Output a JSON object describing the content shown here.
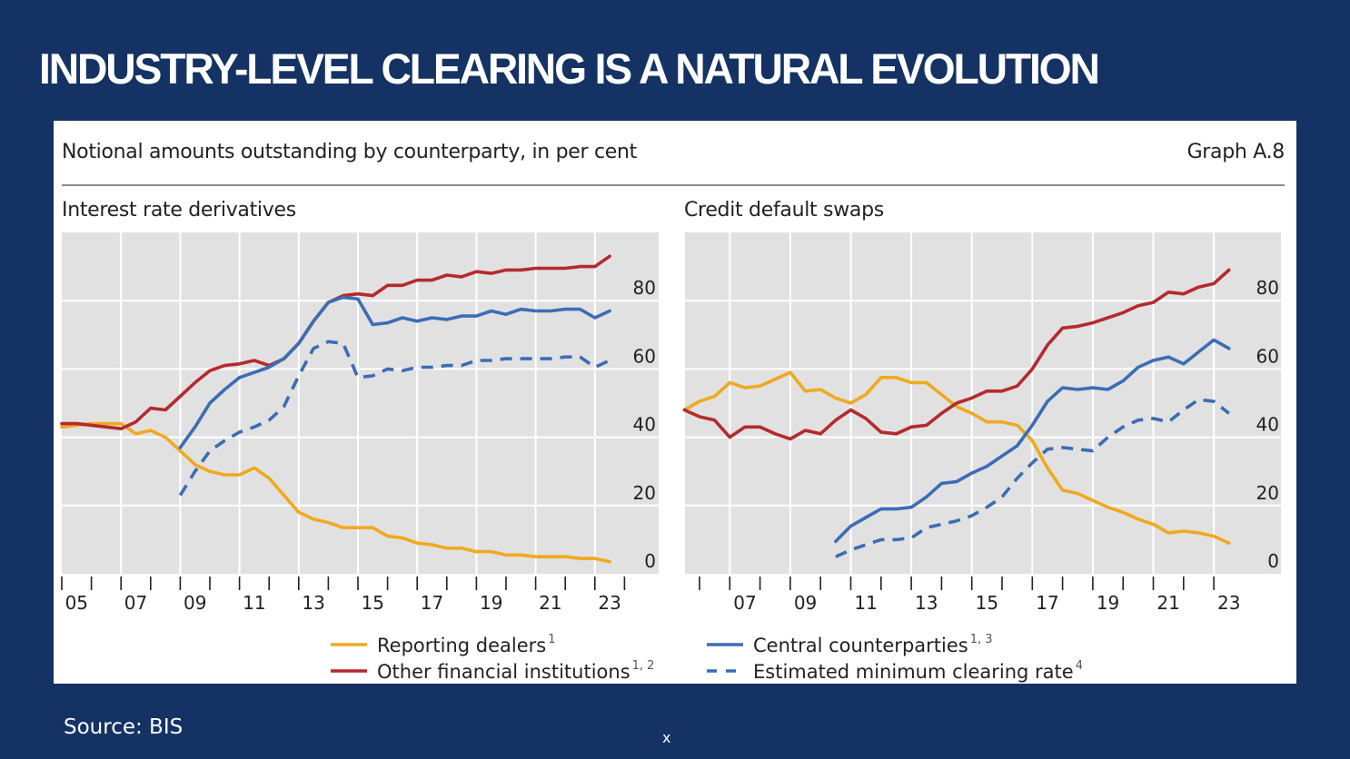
{
  "slide": {
    "title": "INDUSTRY-LEVEL CLEARING IS A NATURAL EVOLUTION",
    "source": "Source: BIS",
    "footer_mark": "x"
  },
  "panel": {
    "heading": "Notional amounts outstanding by counterparty, in per cent",
    "graph_id": "Graph A.8"
  },
  "colors": {
    "background": "#143263",
    "plot_bg": "#e1e1e1",
    "reporting_dealers": "#f0a91e",
    "other_financial_institutions": "#b52a2e",
    "central_counterparties": "#3b6db5",
    "estimated_minimum_clearing_rate": "#3b6db5"
  },
  "chart_data": [
    {
      "type": "line",
      "title": "Interest rate derivatives",
      "xlabel": "",
      "ylabel": "",
      "ylim": [
        0,
        100
      ],
      "yticks": [
        0,
        20,
        40,
        60,
        80
      ],
      "xlim": [
        2005,
        2025.1
      ],
      "xtick_labels": [
        "05",
        "07",
        "09",
        "11",
        "13",
        "15",
        "17",
        "19",
        "21",
        "23"
      ],
      "grid": true,
      "legend_position": "bottom",
      "series": [
        {
          "name": "Reporting dealers",
          "sup": "1",
          "style": "solid",
          "color_key": "reporting_dealers",
          "x": [
            2005,
            2005.5,
            2006,
            2006.5,
            2007,
            2007.5,
            2008,
            2008.5,
            2009,
            2009.5,
            2010,
            2010.5,
            2011,
            2011.5,
            2012,
            2012.5,
            2013,
            2013.5,
            2014,
            2014.5,
            2015,
            2015.5,
            2016,
            2016.5,
            2017,
            2017.5,
            2018,
            2018.5,
            2019,
            2019.5,
            2020,
            2020.5,
            2021,
            2021.5,
            2022,
            2022.5,
            2023,
            2023.5
          ],
          "y": [
            43,
            43.5,
            44,
            44,
            44,
            41,
            42,
            40,
            36,
            32,
            30,
            29,
            29,
            31,
            28,
            23,
            18,
            16,
            15,
            13.5,
            13.5,
            13.5,
            11,
            10.5,
            9,
            8.5,
            7.5,
            7.5,
            6.5,
            6.5,
            5.5,
            5.5,
            5,
            5,
            5,
            4.5,
            4.5,
            3.5
          ]
        },
        {
          "name": "Other financial institutions",
          "sup": "1, 2",
          "style": "solid",
          "color_key": "other_financial_institutions",
          "x": [
            2005,
            2005.5,
            2006,
            2006.5,
            2007,
            2007.5,
            2008,
            2008.5,
            2009,
            2009.5,
            2010,
            2010.5,
            2011,
            2011.5,
            2012,
            2012.5,
            2013,
            2013.5,
            2014,
            2014.5,
            2015,
            2015.5,
            2016,
            2016.5,
            2017,
            2017.5,
            2018,
            2018.5,
            2019,
            2019.5,
            2020,
            2020.5,
            2021,
            2021.5,
            2022,
            2022.5,
            2023,
            2023.5
          ],
          "y": [
            44,
            44,
            43.5,
            43,
            42.5,
            44.5,
            48.5,
            48,
            52,
            56,
            59.5,
            61,
            61.5,
            62.5,
            61,
            63,
            67.5,
            74,
            79.5,
            81.5,
            82,
            81.5,
            84.5,
            84.5,
            86,
            86,
            87.5,
            87,
            88.5,
            88,
            89,
            89,
            89.5,
            89.5,
            89.5,
            90,
            90,
            93
          ]
        },
        {
          "name": "Central counterparties",
          "sup": "1, 3",
          "style": "solid",
          "color_key": "central_counterparties",
          "x": [
            2009,
            2009.5,
            2010,
            2010.5,
            2011,
            2011.5,
            2012,
            2012.5,
            2013,
            2013.5,
            2014,
            2014.5,
            2015,
            2015.5,
            2016,
            2016.5,
            2017,
            2017.5,
            2018,
            2018.5,
            2019,
            2019.5,
            2020,
            2020.5,
            2021,
            2021.5,
            2022,
            2022.5,
            2023,
            2023.5
          ],
          "y": [
            37,
            43,
            50,
            54,
            57.5,
            59,
            60.5,
            63,
            67.5,
            74,
            79.5,
            81,
            80.5,
            73,
            73.5,
            75,
            74,
            75,
            74.5,
            75.5,
            75.5,
            77,
            76,
            77.5,
            77,
            77,
            77.5,
            77.5,
            75,
            77
          ]
        },
        {
          "name": "Estimated minimum clearing rate",
          "sup": "4",
          "style": "dashed",
          "color_key": "estimated_minimum_clearing_rate",
          "x": [
            2009,
            2009.5,
            2010,
            2010.5,
            2011,
            2011.5,
            2012,
            2012.5,
            2013,
            2013.5,
            2014,
            2014.5,
            2015,
            2015.5,
            2016,
            2016.5,
            2017,
            2017.5,
            2018,
            2018.5,
            2019,
            2019.5,
            2020,
            2020.5,
            2021,
            2021.5,
            2022,
            2022.5,
            2023,
            2023.5
          ],
          "y": [
            23,
            30,
            36,
            39,
            41.5,
            43,
            45,
            49,
            58,
            66,
            68,
            67.5,
            57.5,
            58,
            60,
            59.5,
            60.5,
            60.5,
            61,
            61,
            62.5,
            62.5,
            63,
            63,
            63,
            63,
            63.5,
            63.5,
            60.5,
            62.5
          ]
        }
      ]
    },
    {
      "type": "line",
      "title": "Credit default swaps",
      "xlabel": "",
      "ylabel": "",
      "ylim": [
        0,
        100
      ],
      "yticks": [
        0,
        20,
        40,
        60,
        80
      ],
      "xlim": [
        2005.5,
        2025.2
      ],
      "xtick_labels": [
        "07",
        "09",
        "11",
        "13",
        "15",
        "17",
        "19",
        "21",
        "23"
      ],
      "grid": true,
      "legend_position": "bottom",
      "series": [
        {
          "name": "Reporting dealers",
          "sup": "1",
          "style": "solid",
          "color_key": "reporting_dealers",
          "x": [
            2005.5,
            2006,
            2006.5,
            2007,
            2007.5,
            2008,
            2008.5,
            2009,
            2009.5,
            2010,
            2010.5,
            2011,
            2011.5,
            2012,
            2012.5,
            2013,
            2013.5,
            2014,
            2014.5,
            2015,
            2015.5,
            2016,
            2016.5,
            2017,
            2017.5,
            2018,
            2018.5,
            2019,
            2019.5,
            2020,
            2020.5,
            2021,
            2021.5,
            2022,
            2022.5,
            2023,
            2023.5
          ],
          "y": [
            48,
            50.5,
            52,
            56,
            54.5,
            55,
            57,
            59,
            53.5,
            54,
            51.5,
            50,
            52.5,
            57.5,
            57.5,
            56,
            56,
            52.5,
            49,
            47,
            44.5,
            44.5,
            43.5,
            39,
            31,
            24.5,
            23.5,
            21.5,
            19.5,
            18,
            16,
            14.5,
            12,
            12.5,
            12,
            11,
            9
          ]
        },
        {
          "name": "Other financial institutions",
          "sup": "1, 2",
          "style": "solid",
          "color_key": "other_financial_institutions",
          "x": [
            2005.5,
            2006,
            2006.5,
            2007,
            2007.5,
            2008,
            2008.5,
            2009,
            2009.5,
            2010,
            2010.5,
            2011,
            2011.5,
            2012,
            2012.5,
            2013,
            2013.5,
            2014,
            2014.5,
            2015,
            2015.5,
            2016,
            2016.5,
            2017,
            2017.5,
            2018,
            2018.5,
            2019,
            2019.5,
            2020,
            2020.5,
            2021,
            2021.5,
            2022,
            2022.5,
            2023,
            2023.5
          ],
          "y": [
            48,
            46,
            45,
            40,
            43,
            43,
            41,
            39.5,
            42,
            41,
            45,
            48,
            45.5,
            41.5,
            41,
            43,
            43.5,
            47,
            50,
            51.5,
            53.5,
            53.5,
            55,
            60,
            67,
            72,
            72.5,
            73.5,
            75,
            76.5,
            78.5,
            79.5,
            82.5,
            82,
            84,
            85,
            89
          ]
        },
        {
          "name": "Central counterparties",
          "sup": "1, 3",
          "style": "solid",
          "color_key": "central_counterparties",
          "x": [
            2010.5,
            2011,
            2011.5,
            2012,
            2012.5,
            2013,
            2013.5,
            2014,
            2014.5,
            2015,
            2015.5,
            2016,
            2016.5,
            2017,
            2017.5,
            2018,
            2018.5,
            2019,
            2019.5,
            2020,
            2020.5,
            2021,
            2021.5,
            2022,
            2022.5,
            2023,
            2023.5
          ],
          "y": [
            9.5,
            14,
            16.5,
            19,
            19,
            19.5,
            22.5,
            26.5,
            27,
            29.5,
            31.5,
            34.5,
            37.5,
            43.5,
            50.5,
            54.5,
            54,
            54.5,
            54,
            56.5,
            60.5,
            62.5,
            63.5,
            61.5,
            65,
            68.5,
            66
          ]
        },
        {
          "name": "Estimated minimum clearing rate",
          "sup": "4",
          "style": "dashed",
          "color_key": "estimated_minimum_clearing_rate",
          "x": [
            2010.5,
            2011,
            2011.5,
            2012,
            2012.5,
            2013,
            2013.5,
            2014,
            2014.5,
            2015,
            2015.5,
            2016,
            2016.5,
            2017,
            2017.5,
            2018,
            2018.5,
            2019,
            2019.5,
            2020,
            2020.5,
            2021,
            2021.5,
            2022,
            2022.5,
            2023,
            2023.5
          ],
          "y": [
            5,
            7,
            8.5,
            10,
            10,
            10.5,
            13.5,
            14.5,
            15.5,
            17,
            19.5,
            22.5,
            28,
            32.5,
            36.5,
            37,
            36.5,
            36,
            40,
            43,
            45,
            45.5,
            44.5,
            48,
            51,
            50.5,
            47
          ]
        }
      ]
    }
  ],
  "legends": {
    "left": [
      {
        "label": "Reporting dealers",
        "sup": "1",
        "color_key": "reporting_dealers",
        "style": "solid"
      },
      {
        "label": "Other financial institutions",
        "sup": "1, 2",
        "color_key": "other_financial_institutions",
        "style": "solid"
      }
    ],
    "right": [
      {
        "label": "Central counterparties",
        "sup": "1, 3",
        "color_key": "central_counterparties",
        "style": "solid"
      },
      {
        "label": "Estimated minimum clearing rate",
        "sup": "4",
        "color_key": "estimated_minimum_clearing_rate",
        "style": "dashed"
      }
    ]
  }
}
